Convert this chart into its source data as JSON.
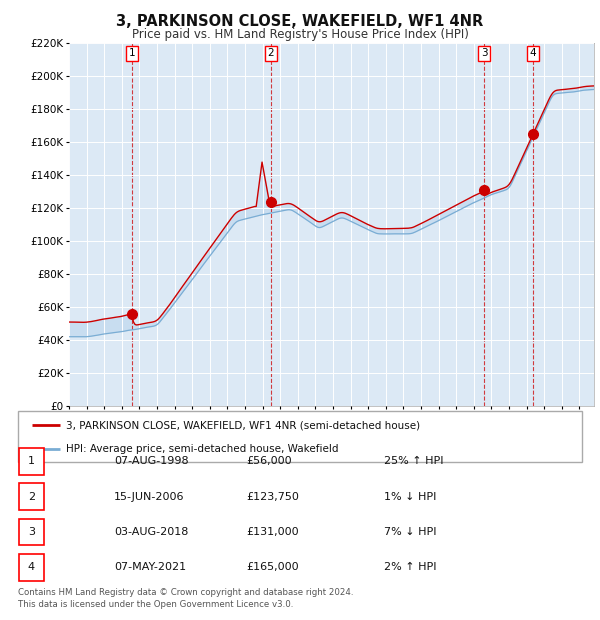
{
  "title": "3, PARKINSON CLOSE, WAKEFIELD, WF1 4NR",
  "subtitle": "Price paid vs. HM Land Registry's House Price Index (HPI)",
  "ylim": [
    0,
    220000
  ],
  "xlim_start": 1995.0,
  "xlim_end": 2024.83,
  "background_color": "#ffffff",
  "plot_bg_color": "#dce9f5",
  "grid_color": "#ffffff",
  "sale_dates": [
    1998.58,
    2006.46,
    2018.59,
    2021.36
  ],
  "sale_prices": [
    56000,
    123750,
    131000,
    165000
  ],
  "sale_labels": [
    "1",
    "2",
    "3",
    "4"
  ],
  "legend_line1": "3, PARKINSON CLOSE, WAKEFIELD, WF1 4NR (semi-detached house)",
  "legend_line2": "HPI: Average price, semi-detached house, Wakefield",
  "table_rows": [
    [
      "1",
      "07-AUG-1998",
      "£56,000",
      "25% ↑ HPI"
    ],
    [
      "2",
      "15-JUN-2006",
      "£123,750",
      "1% ↓ HPI"
    ],
    [
      "3",
      "03-AUG-2018",
      "£131,000",
      "7% ↓ HPI"
    ],
    [
      "4",
      "07-MAY-2021",
      "£165,000",
      "2% ↑ HPI"
    ]
  ],
  "footer": "Contains HM Land Registry data © Crown copyright and database right 2024.\nThis data is licensed under the Open Government Licence v3.0.",
  "red_line_color": "#cc0000",
  "blue_line_color": "#7aadd4",
  "dot_color": "#cc0000",
  "dashed_line_color": "#cc0000",
  "shade_fill_color": "#c8ddf0"
}
